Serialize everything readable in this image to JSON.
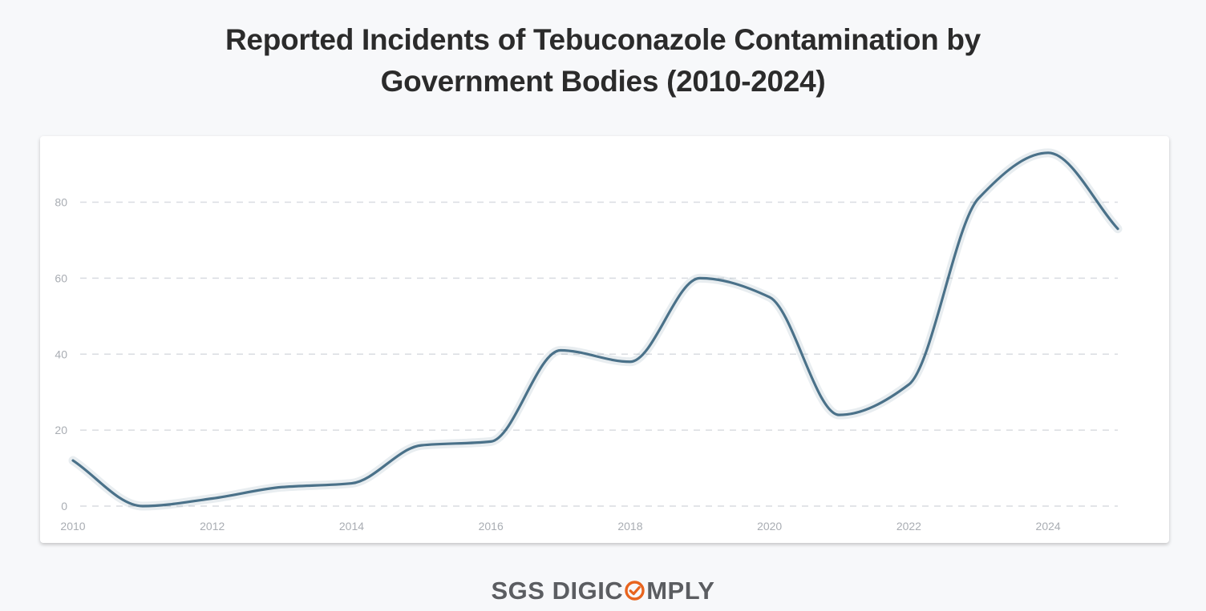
{
  "chart_data": {
    "type": "line",
    "title_lines": [
      "Reported Incidents of Tebuconazole Contamination by",
      "Government Bodies (2010-2024)"
    ],
    "xlabel": "",
    "ylabel": "",
    "x": [
      2010,
      2011,
      2012,
      2013,
      2014,
      2015,
      2016,
      2017,
      2018,
      2019,
      2020,
      2021,
      2022,
      2023,
      2024,
      2025
    ],
    "series": [
      {
        "name": "Reported incidents",
        "values": [
          12,
          0,
          2,
          5,
          6,
          16,
          17,
          41,
          38,
          60,
          55,
          24,
          32,
          81,
          93,
          73
        ],
        "color": "#4a7189"
      }
    ],
    "xlim": [
      2010,
      2025
    ],
    "ylim": [
      0,
      93
    ],
    "y_ticks": [
      0,
      20,
      40,
      60,
      80
    ],
    "x_ticks": [
      2010,
      2012,
      2014,
      2016,
      2018,
      2020,
      2022,
      2024
    ],
    "grid": true,
    "legend": "none"
  },
  "footer": {
    "logo_text": "SGS DIGICOMPLY",
    "logo_prefix": "SGS DIGIC",
    "logo_suffix": "MPLY",
    "accent_color": "#e8641e"
  }
}
